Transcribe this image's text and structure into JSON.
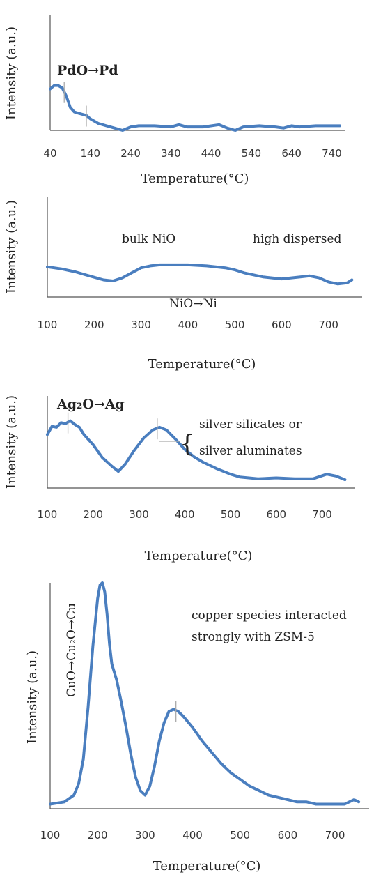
{
  "chart_data": [
    {
      "type": "line",
      "xlabel": "Temperature(°C)",
      "ylabel": "Intensity (a.u.)",
      "xticks": [
        "40",
        "140",
        "240",
        "340",
        "440",
        "540",
        "640",
        "740"
      ],
      "xlim": [
        40,
        760
      ],
      "ylim": [
        0,
        1
      ],
      "annotations": [
        {
          "text": "PdO→Pd",
          "x": 85,
          "y": 0.55
        }
      ],
      "markers": [
        75,
        130
      ],
      "series": [
        {
          "x": [
            40,
            50,
            60,
            70,
            80,
            90,
            100,
            110,
            120,
            130,
            140,
            160,
            180,
            200,
            220,
            240,
            260,
            300,
            340,
            360,
            380,
            420,
            460,
            480,
            500,
            520,
            560,
            600,
            620,
            640,
            660,
            700,
            740,
            760
          ],
          "values": [
            0.36,
            0.39,
            0.39,
            0.37,
            0.3,
            0.2,
            0.16,
            0.15,
            0.14,
            0.13,
            0.1,
            0.06,
            0.04,
            0.02,
            0.0,
            0.03,
            0.04,
            0.04,
            0.03,
            0.05,
            0.03,
            0.03,
            0.05,
            0.02,
            0.0,
            0.03,
            0.04,
            0.03,
            0.02,
            0.04,
            0.03,
            0.04,
            0.04,
            0.04
          ]
        }
      ]
    },
    {
      "type": "line",
      "xlabel": "Temperature(°C)",
      "ylabel": "Intensity (a.u.)",
      "xticks": [
        "100",
        "200",
        "300",
        "400",
        "500",
        "600",
        "700"
      ],
      "xlim": [
        100,
        760
      ],
      "ylim": [
        0,
        1
      ],
      "annotations": [
        {
          "text": "bulk NiO",
          "x": 265,
          "y": 0.57
        },
        {
          "text": "high dispersed",
          "x": 660,
          "y": 0.57
        },
        {
          "text": "NiO→Ni",
          "x": 420,
          "y": 0.07
        }
      ],
      "markers": [],
      "series": [
        {
          "x": [
            100,
            130,
            160,
            190,
            220,
            240,
            260,
            280,
            300,
            320,
            340,
            360,
            400,
            440,
            480,
            500,
            520,
            560,
            600,
            640,
            660,
            680,
            700,
            720,
            740,
            750
          ],
          "values": [
            0.3,
            0.28,
            0.25,
            0.21,
            0.17,
            0.16,
            0.19,
            0.24,
            0.29,
            0.31,
            0.32,
            0.32,
            0.32,
            0.31,
            0.29,
            0.27,
            0.24,
            0.2,
            0.18,
            0.2,
            0.21,
            0.19,
            0.15,
            0.13,
            0.14,
            0.17
          ]
        }
      ]
    },
    {
      "type": "line",
      "xlabel": "Temperature(°C)",
      "ylabel": "Intensity (a.u.)",
      "xticks": [
        "100",
        "200",
        "300",
        "400",
        "500",
        "600",
        "700"
      ],
      "xlim": [
        100,
        760
      ],
      "ylim": [
        0,
        1
      ],
      "annotations": [
        {
          "text": "Ag₂O→Ag",
          "x": 130,
          "y": 0.93
        },
        {
          "text": "silver silicates or",
          "x": 470,
          "y": 0.78
        },
        {
          "text": "silver aluminates",
          "x": 470,
          "y": 0.55
        }
      ],
      "markers": [
        145,
        340
      ],
      "series": [
        {
          "x": [
            100,
            110,
            120,
            130,
            140,
            150,
            160,
            170,
            180,
            200,
            220,
            240,
            255,
            270,
            290,
            310,
            330,
            345,
            360,
            380,
            400,
            420,
            440,
            470,
            500,
            520,
            560,
            600,
            640,
            680,
            710,
            730,
            750
          ],
          "values": [
            0.58,
            0.67,
            0.66,
            0.71,
            0.7,
            0.73,
            0.69,
            0.66,
            0.58,
            0.47,
            0.33,
            0.24,
            0.18,
            0.26,
            0.41,
            0.54,
            0.63,
            0.66,
            0.63,
            0.53,
            0.42,
            0.34,
            0.28,
            0.21,
            0.15,
            0.12,
            0.1,
            0.11,
            0.1,
            0.1,
            0.15,
            0.13,
            0.09
          ]
        }
      ]
    },
    {
      "type": "line",
      "xlabel": "Temperature(°C)",
      "ylabel": "Intensity (a.u.)",
      "xticks": [
        "100",
        "200",
        "300",
        "400",
        "500",
        "600",
        "700"
      ],
      "xlim": [
        100,
        760
      ],
      "ylim": [
        0,
        1
      ],
      "annotations": [
        {
          "text": "CuO→Cu₂O→Cu",
          "x": 135,
          "y": 0.68
        },
        {
          "text": "copper species interacted",
          "x": 440,
          "y": 0.75
        },
        {
          "text": "strongly with  ZSM-5",
          "x": 440,
          "y": 0.67
        }
      ],
      "markers": [
        365
      ],
      "series": [
        {
          "x": [
            100,
            130,
            150,
            160,
            170,
            180,
            190,
            200,
            205,
            210,
            215,
            220,
            225,
            230,
            240,
            250,
            260,
            270,
            280,
            290,
            300,
            310,
            320,
            330,
            340,
            350,
            360,
            370,
            380,
            400,
            420,
            440,
            460,
            480,
            500,
            520,
            540,
            560,
            580,
            600,
            620,
            640,
            660,
            680,
            700,
            720,
            730,
            740,
            750
          ],
          "values": [
            0.02,
            0.03,
            0.06,
            0.11,
            0.22,
            0.45,
            0.72,
            0.93,
            0.99,
            1.0,
            0.96,
            0.86,
            0.73,
            0.64,
            0.57,
            0.47,
            0.36,
            0.24,
            0.14,
            0.08,
            0.06,
            0.1,
            0.19,
            0.3,
            0.38,
            0.43,
            0.44,
            0.43,
            0.41,
            0.36,
            0.3,
            0.25,
            0.2,
            0.16,
            0.13,
            0.1,
            0.08,
            0.06,
            0.05,
            0.04,
            0.03,
            0.03,
            0.02,
            0.02,
            0.02,
            0.02,
            0.03,
            0.04,
            0.03
          ]
        }
      ]
    }
  ]
}
